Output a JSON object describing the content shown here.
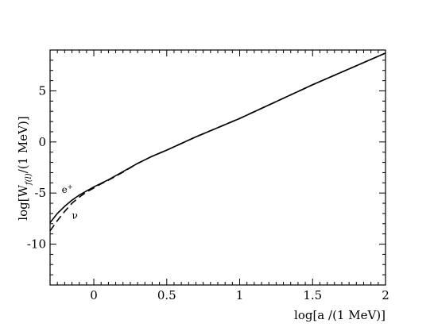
{
  "chart_data": {
    "type": "line",
    "title": "",
    "xlabel": "log[a /(1 MeV)]",
    "ylabel": {
      "prefix": "log[W",
      "subscript": "f(l)",
      "suffix": "/(1 MeV)]"
    },
    "xlim": [
      -0.3,
      2.0
    ],
    "ylim": [
      -14,
      9
    ],
    "xticks": [
      0,
      0.5,
      1,
      1.5,
      2
    ],
    "xtick_labels": [
      "0",
      "0.5",
      "1",
      "1.5",
      "2"
    ],
    "yticks": [
      -10,
      -5,
      0,
      5
    ],
    "ytick_labels": [
      "-10",
      "-5",
      "0",
      "5"
    ],
    "grid": false,
    "series": [
      {
        "name": "e⁺",
        "style": "solid",
        "x": [
          -0.3,
          -0.25,
          -0.2,
          -0.15,
          -0.1,
          -0.05,
          0.0,
          0.05,
          0.1,
          0.15,
          0.2,
          0.3,
          0.4,
          0.5,
          0.7,
          1.0,
          1.5,
          2.0
        ],
        "y": [
          -7.9,
          -7.0,
          -6.3,
          -5.7,
          -5.2,
          -4.8,
          -4.4,
          -4.05,
          -3.7,
          -3.3,
          -2.9,
          -2.1,
          -1.4,
          -0.8,
          0.5,
          2.3,
          5.6,
          8.7
        ]
      },
      {
        "name": "ν",
        "style": "dashed",
        "x": [
          -0.3,
          -0.25,
          -0.2,
          -0.15,
          -0.1,
          -0.05,
          0.0,
          0.05,
          0.1,
          0.15,
          0.2,
          0.3,
          0.4,
          0.5,
          0.7,
          1.0,
          1.5,
          2.0
        ],
        "y": [
          -8.7,
          -7.7,
          -6.8,
          -6.0,
          -5.4,
          -4.9,
          -4.5,
          -4.1,
          -3.75,
          -3.35,
          -2.95,
          -2.1,
          -1.4,
          -0.8,
          0.5,
          2.3,
          5.6,
          8.7
        ]
      }
    ],
    "annotations": [
      {
        "text": "e",
        "superscript": "+",
        "x": -0.22,
        "y": -5.0
      },
      {
        "text": "ν",
        "x": -0.15,
        "y": -7.5
      }
    ]
  }
}
